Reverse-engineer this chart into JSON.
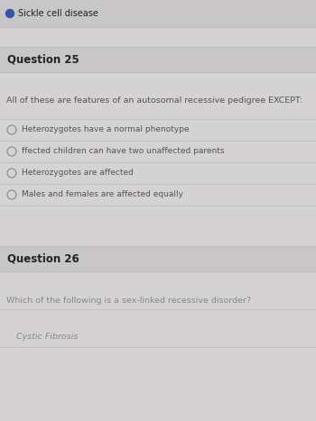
{
  "bg_color": "#d0cece",
  "header_bg": "#c8c6c6",
  "question_bg": "#c8c6c6",
  "content_bg": "#d4d2d2",
  "text_color": "#555555",
  "bold_text_color": "#222222",
  "dim_text_color": "#888888",
  "header_item": "Sickle cell disease",
  "q25_label": "Question 25",
  "q25_text": "All of these are features of an autosomal recessive pedigree EXCEPT:",
  "q25_options": [
    "Heterozygotes have a normal phenotype",
    "ffected children can have two unaffected parents",
    "Heterozygotes are affected",
    "Males and females are affected equally"
  ],
  "q26_label": "Question 26",
  "q26_text": "Which of the following is a sex-linked recessive disorder?",
  "q26_answer": "Cystic Fibrosis",
  "circle_color": "#888888",
  "dot_color": "#3355aa",
  "line_color": "#bbbbbb",
  "figsize": [
    3.5,
    4.67
  ],
  "dpi": 100
}
